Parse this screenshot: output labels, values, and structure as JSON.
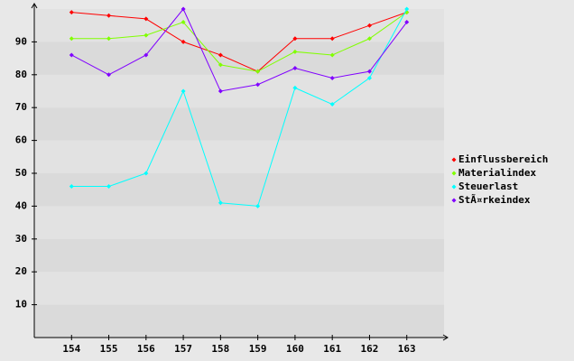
{
  "chart_data": {
    "type": "line",
    "x": [
      154,
      155,
      156,
      157,
      158,
      159,
      160,
      161,
      162,
      163
    ],
    "xlim": [
      153,
      164
    ],
    "xticks": [
      154,
      155,
      156,
      157,
      158,
      159,
      160,
      161,
      162,
      163
    ],
    "ylim": [
      0,
      100
    ],
    "yticks": [
      10,
      20,
      30,
      40,
      50,
      60,
      70,
      80,
      90
    ],
    "grid": true,
    "legend": "right",
    "series": [
      {
        "name": "Einflussbereich",
        "color": "#ff0000",
        "values": [
          99,
          98,
          97,
          90,
          86,
          81,
          91,
          91,
          95,
          99
        ]
      },
      {
        "name": "Materialindex",
        "color": "#80ff00",
        "values": [
          91,
          91,
          92,
          96,
          83,
          81,
          87,
          86,
          91,
          99
        ]
      },
      {
        "name": "Steuerlast",
        "color": "#00ffff",
        "values": [
          46,
          46,
          50,
          75,
          41,
          40,
          76,
          71,
          79,
          100
        ]
      },
      {
        "name": "StÃ¤rkeindex",
        "color": "#8000ff",
        "values": [
          86,
          80,
          86,
          100,
          75,
          77,
          82,
          79,
          81,
          96
        ]
      }
    ]
  }
}
